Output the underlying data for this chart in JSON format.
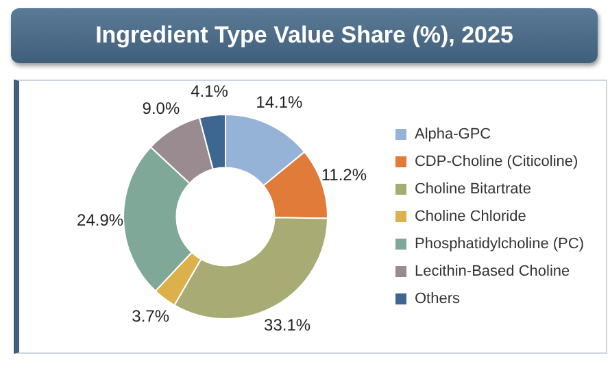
{
  "chart_data": {
    "type": "donut",
    "title": "Ingredient Type Value Share (%), 2025",
    "categories": [
      "Alpha-GPC",
      "CDP-Choline (Citicoline)",
      "Choline Bitartrate",
      "Choline Chloride",
      "Phosphatidylcholine (PC)",
      "Lecithin-Based Choline",
      "Others"
    ],
    "values": [
      14.1,
      11.2,
      33.1,
      3.7,
      24.9,
      9.0,
      4.1
    ],
    "value_labels": [
      "14.1%",
      "11.2%",
      "33.1%",
      "3.7%",
      "24.9%",
      "9.0%",
      "4.1%"
    ],
    "colors": [
      "#95b3d7",
      "#e07b39",
      "#a9ab74",
      "#dcb04a",
      "#7fa898",
      "#9a8b90",
      "#3d6690"
    ],
    "legend": "right"
  }
}
